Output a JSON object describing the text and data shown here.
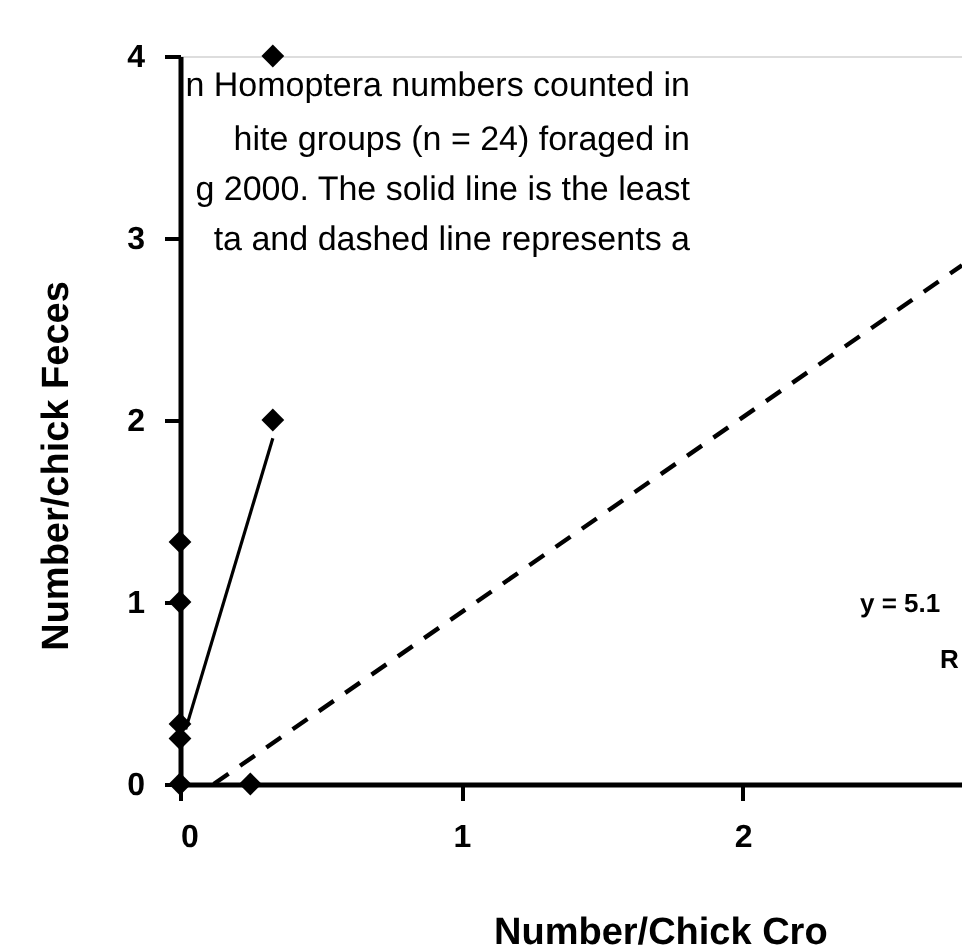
{
  "chart_data": {
    "type": "scatter",
    "xlabel": "Number/Chick Cro",
    "ylabel": "Number/chick Feces",
    "xlim": [
      0,
      2.78
    ],
    "ylim": [
      0,
      4
    ],
    "xticks": [
      0,
      1,
      2
    ],
    "yticks": [
      0,
      1,
      2,
      3,
      4
    ],
    "grid": false,
    "series": [
      {
        "marker": "diamond",
        "color": "#000000",
        "x": [
          0,
          0.25,
          0,
          0,
          0,
          0,
          0.33,
          0.33
        ],
        "values": [
          0,
          0,
          0.25,
          0.33,
          1,
          1.33,
          2,
          4
        ]
      },
      {
        "type": "line",
        "line_style": "solid",
        "color": "#000000",
        "x": [
          0.02,
          0.33
        ],
        "values": [
          0.3,
          1.9
        ]
      },
      {
        "type": "line",
        "line_style": "dashed",
        "color": "#000000",
        "x": [
          0.12,
          2.78
        ],
        "values": [
          0,
          2.85
        ]
      }
    ],
    "annotations": [
      "n Homoptera numbers counted in",
      "hite groups (n = 24) foraged in",
      "g 2000. The solid line is the least",
      "ta and dashed line represents a",
      "y = 5.1",
      "R"
    ]
  }
}
